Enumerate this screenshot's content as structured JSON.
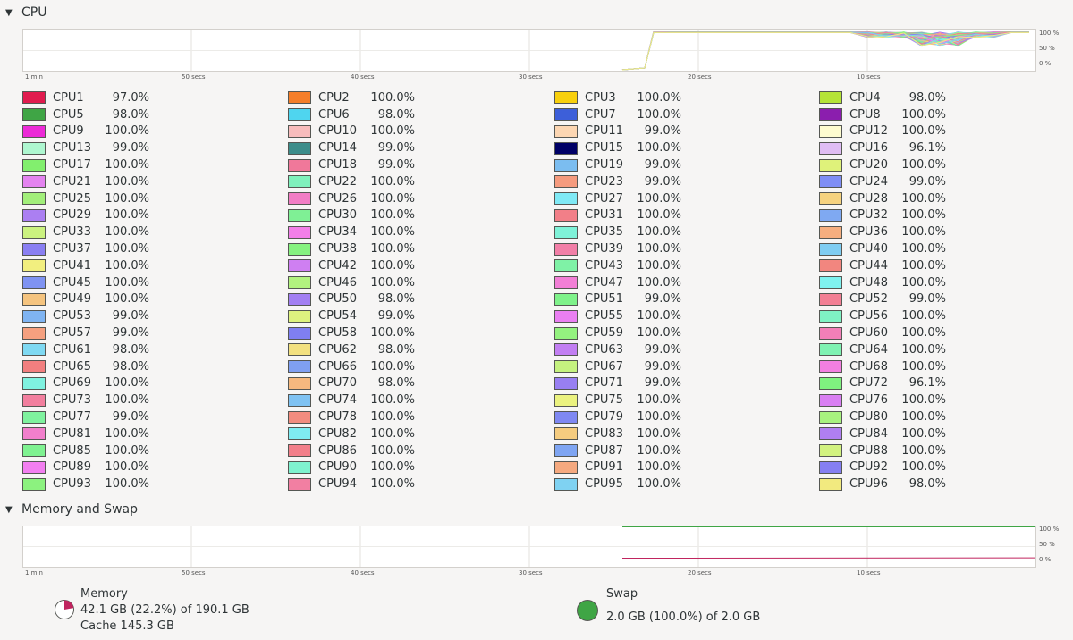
{
  "cpu_section": {
    "title": "CPU"
  },
  "memory_section": {
    "title": "Memory and Swap"
  },
  "time_labels": [
    "1 min",
    "50 secs",
    "40 secs",
    "30 secs",
    "20 secs",
    "10 secs"
  ],
  "percent_labels": [
    "100 %",
    "50 %",
    "0 %"
  ],
  "cpus": [
    {
      "name": "CPU1",
      "value": "97.0%",
      "color": "#e01b4e"
    },
    {
      "name": "CPU2",
      "value": "100.0%",
      "color": "#f57e29"
    },
    {
      "name": "CPU3",
      "value": "100.0%",
      "color": "#f8d00d"
    },
    {
      "name": "CPU4",
      "value": "98.0%",
      "color": "#b5e437"
    },
    {
      "name": "CPU5",
      "value": "98.0%",
      "color": "#3fa545"
    },
    {
      "name": "CPU6",
      "value": "98.0%",
      "color": "#4fd5ef"
    },
    {
      "name": "CPU7",
      "value": "100.0%",
      "color": "#3d5fd9"
    },
    {
      "name": "CPU8",
      "value": "100.0%",
      "color": "#8b1eae"
    },
    {
      "name": "CPU9",
      "value": "100.0%",
      "color": "#ec2ad7"
    },
    {
      "name": "CPU10",
      "value": "100.0%",
      "color": "#f7bcbc"
    },
    {
      "name": "CPU11",
      "value": "99.0%",
      "color": "#fcd6b2"
    },
    {
      "name": "CPU12",
      "value": "100.0%",
      "color": "#fdfbcf"
    },
    {
      "name": "CPU13",
      "value": "99.0%",
      "color": "#aef7d0"
    },
    {
      "name": "CPU14",
      "value": "99.0%",
      "color": "#3c8d8a"
    },
    {
      "name": "CPU15",
      "value": "100.0%",
      "color": "#000066"
    },
    {
      "name": "CPU16",
      "value": "96.1%",
      "color": "#e0bdf4"
    },
    {
      "name": "CPU17",
      "value": "100.0%",
      "color": "#82ef6e"
    },
    {
      "name": "CPU18",
      "value": "99.0%",
      "color": "#f0789a"
    },
    {
      "name": "CPU19",
      "value": "99.0%",
      "color": "#7bbdf0"
    },
    {
      "name": "CPU20",
      "value": "100.0%",
      "color": "#dff27a"
    },
    {
      "name": "CPU21",
      "value": "100.0%",
      "color": "#e383ef"
    },
    {
      "name": "CPU22",
      "value": "100.0%",
      "color": "#7ff0bc"
    },
    {
      "name": "CPU23",
      "value": "99.0%",
      "color": "#f59b7e"
    },
    {
      "name": "CPU24",
      "value": "99.0%",
      "color": "#7f8ef5"
    },
    {
      "name": "CPU25",
      "value": "100.0%",
      "color": "#a2ef7a"
    },
    {
      "name": "CPU26",
      "value": "100.0%",
      "color": "#f27dc5"
    },
    {
      "name": "CPU27",
      "value": "100.0%",
      "color": "#7fe9f5"
    },
    {
      "name": "CPU28",
      "value": "100.0%",
      "color": "#f5d27f"
    },
    {
      "name": "CPU29",
      "value": "100.0%",
      "color": "#ab7ff2"
    },
    {
      "name": "CPU30",
      "value": "100.0%",
      "color": "#7ff095"
    },
    {
      "name": "CPU31",
      "value": "100.0%",
      "color": "#f27f88"
    },
    {
      "name": "CPU32",
      "value": "100.0%",
      "color": "#7fa9f2"
    },
    {
      "name": "CPU33",
      "value": "100.0%",
      "color": "#cbf27f"
    },
    {
      "name": "CPU34",
      "value": "100.0%",
      "color": "#f27fe8"
    },
    {
      "name": "CPU35",
      "value": "100.0%",
      "color": "#7ff2d8"
    },
    {
      "name": "CPU36",
      "value": "100.0%",
      "color": "#f5ae7f"
    },
    {
      "name": "CPU37",
      "value": "100.0%",
      "color": "#8a7ff2"
    },
    {
      "name": "CPU38",
      "value": "100.0%",
      "color": "#86f27f"
    },
    {
      "name": "CPU39",
      "value": "100.0%",
      "color": "#f27fa7"
    },
    {
      "name": "CPU40",
      "value": "100.0%",
      "color": "#7fcdf2"
    },
    {
      "name": "CPU41",
      "value": "100.0%",
      "color": "#f2ef7f"
    },
    {
      "name": "CPU42",
      "value": "100.0%",
      "color": "#cf7ff2"
    },
    {
      "name": "CPU43",
      "value": "100.0%",
      "color": "#7ff2a6"
    },
    {
      "name": "CPU44",
      "value": "100.0%",
      "color": "#f2867f"
    },
    {
      "name": "CPU45",
      "value": "100.0%",
      "color": "#7f93f2"
    },
    {
      "name": "CPU46",
      "value": "100.0%",
      "color": "#b2f27f"
    },
    {
      "name": "CPU47",
      "value": "100.0%",
      "color": "#f27fd6"
    },
    {
      "name": "CPU48",
      "value": "100.0%",
      "color": "#7ff2ef"
    },
    {
      "name": "CPU49",
      "value": "100.0%",
      "color": "#f5c47f"
    },
    {
      "name": "CPU50",
      "value": "98.0%",
      "color": "#a27ff2"
    },
    {
      "name": "CPU51",
      "value": "99.0%",
      "color": "#7ff28a"
    },
    {
      "name": "CPU52",
      "value": "99.0%",
      "color": "#f27f94"
    },
    {
      "name": "CPU53",
      "value": "99.0%",
      "color": "#7fb4f2"
    },
    {
      "name": "CPU54",
      "value": "99.0%",
      "color": "#def27f"
    },
    {
      "name": "CPU55",
      "value": "100.0%",
      "color": "#ea7ff2"
    },
    {
      "name": "CPU56",
      "value": "100.0%",
      "color": "#7ff2c4"
    },
    {
      "name": "CPU57",
      "value": "99.0%",
      "color": "#f5a07f"
    },
    {
      "name": "CPU58",
      "value": "100.0%",
      "color": "#7f7ff2"
    },
    {
      "name": "CPU59",
      "value": "100.0%",
      "color": "#94f27f"
    },
    {
      "name": "CPU60",
      "value": "100.0%",
      "color": "#f27fb8"
    },
    {
      "name": "CPU61",
      "value": "98.0%",
      "color": "#7fd9f2"
    },
    {
      "name": "CPU62",
      "value": "98.0%",
      "color": "#f2e07f"
    },
    {
      "name": "CPU63",
      "value": "99.0%",
      "color": "#c27ff2"
    },
    {
      "name": "CPU64",
      "value": "100.0%",
      "color": "#7ff2b2"
    },
    {
      "name": "CPU65",
      "value": "98.0%",
      "color": "#f27f7f"
    },
    {
      "name": "CPU66",
      "value": "100.0%",
      "color": "#7f9ff2"
    },
    {
      "name": "CPU67",
      "value": "99.0%",
      "color": "#c5f27f"
    },
    {
      "name": "CPU68",
      "value": "100.0%",
      "color": "#f27fe0"
    },
    {
      "name": "CPU69",
      "value": "100.0%",
      "color": "#7ff2e0"
    },
    {
      "name": "CPU70",
      "value": "98.0%",
      "color": "#f5b87f"
    },
    {
      "name": "CPU71",
      "value": "99.0%",
      "color": "#987ff2"
    },
    {
      "name": "CPU72",
      "value": "96.1%",
      "color": "#7ff27f"
    },
    {
      "name": "CPU73",
      "value": "100.0%",
      "color": "#f27f9e"
    },
    {
      "name": "CPU74",
      "value": "100.0%",
      "color": "#7fc2f2"
    },
    {
      "name": "CPU75",
      "value": "100.0%",
      "color": "#ebf27f"
    },
    {
      "name": "CPU76",
      "value": "100.0%",
      "color": "#d97ff2"
    },
    {
      "name": "CPU77",
      "value": "99.0%",
      "color": "#7ff29e"
    },
    {
      "name": "CPU78",
      "value": "100.0%",
      "color": "#f28c7f"
    },
    {
      "name": "CPU79",
      "value": "100.0%",
      "color": "#7f88f2"
    },
    {
      "name": "CPU80",
      "value": "100.0%",
      "color": "#a8f27f"
    },
    {
      "name": "CPU81",
      "value": "100.0%",
      "color": "#f27fcc"
    },
    {
      "name": "CPU82",
      "value": "100.0%",
      "color": "#7fecf2"
    },
    {
      "name": "CPU83",
      "value": "100.0%",
      "color": "#f5cc7f"
    },
    {
      "name": "CPU84",
      "value": "100.0%",
      "color": "#b07ff2"
    },
    {
      "name": "CPU85",
      "value": "100.0%",
      "color": "#7ff291"
    },
    {
      "name": "CPU86",
      "value": "100.0%",
      "color": "#f27f8a"
    },
    {
      "name": "CPU87",
      "value": "100.0%",
      "color": "#7fa5f2"
    },
    {
      "name": "CPU88",
      "value": "100.0%",
      "color": "#d2f27f"
    },
    {
      "name": "CPU89",
      "value": "100.0%",
      "color": "#f27ff0"
    },
    {
      "name": "CPU90",
      "value": "100.0%",
      "color": "#7ff2cf"
    },
    {
      "name": "CPU91",
      "value": "100.0%",
      "color": "#f5a97f"
    },
    {
      "name": "CPU92",
      "value": "100.0%",
      "color": "#857ff2"
    },
    {
      "name": "CPU93",
      "value": "100.0%",
      "color": "#8cf27f"
    },
    {
      "name": "CPU94",
      "value": "100.0%",
      "color": "#f27fa2"
    },
    {
      "name": "CPU95",
      "value": "100.0%",
      "color": "#7fd2f2"
    },
    {
      "name": "CPU96",
      "value": "98.0%",
      "color": "#f2ea7f"
    }
  ],
  "memory": {
    "label": "Memory",
    "usage": "42.1 GB (22.2%) of 190.1 GB",
    "cache": "Cache 145.3 GB",
    "color": "#c0245e",
    "fraction": 0.222
  },
  "swap": {
    "label": "Swap",
    "usage": "2.0 GB (100.0%) of 2.0 GB",
    "color": "#3fa545",
    "fraction": 1.0
  }
}
